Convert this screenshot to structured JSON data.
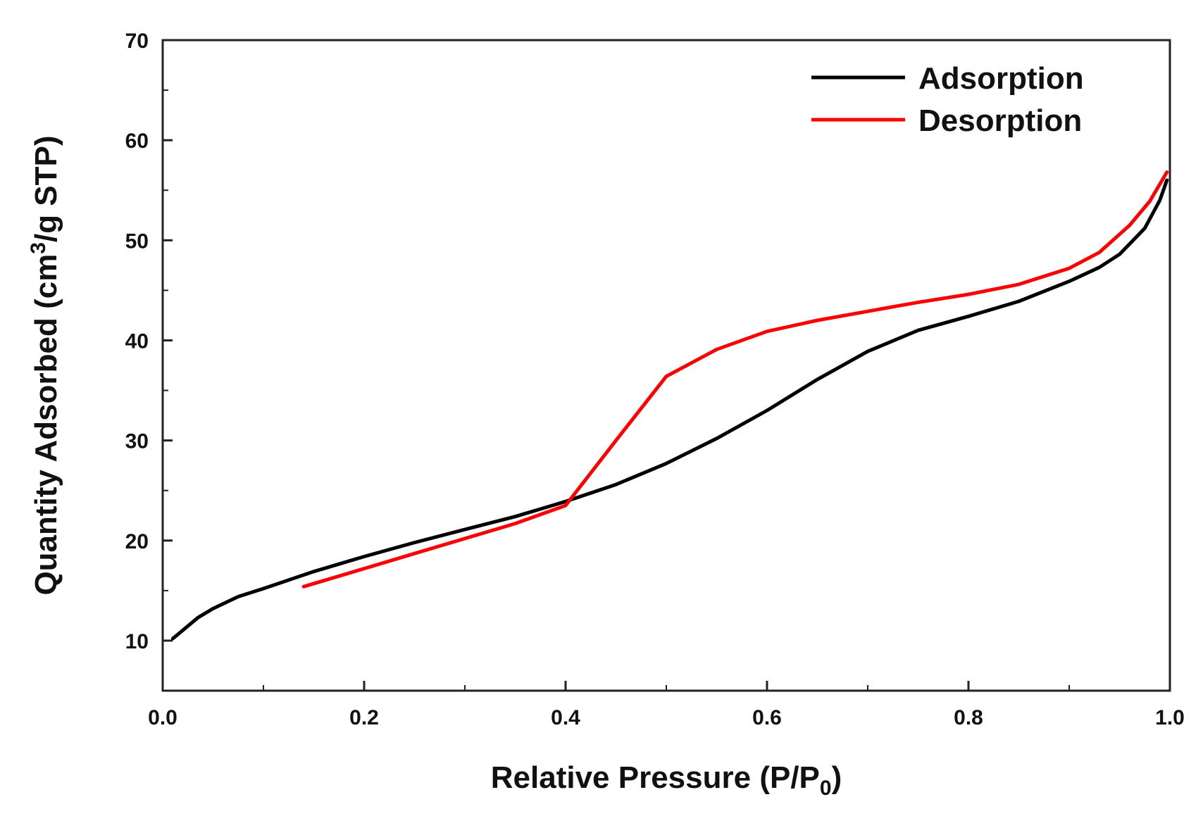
{
  "chart_data": {
    "type": "line",
    "title": "",
    "xlabel": "Relative Pressure (P/P",
    "xlabel_sub": "0",
    "xlabel_end": ")",
    "ylabel": "Quantity Adsorbed (cm",
    "ylabel_sup": "3",
    "ylabel_end": "/g STP)",
    "xlim": [
      0.0,
      1.0
    ],
    "ylim": [
      5,
      70
    ],
    "xticks": [
      "0.0",
      "0.2",
      "0.4",
      "0.6",
      "0.8",
      "1.0"
    ],
    "xtick_values": [
      0.0,
      0.2,
      0.4,
      0.6,
      0.8,
      1.0
    ],
    "yticks": [
      "10",
      "20",
      "30",
      "40",
      "50",
      "60",
      "70"
    ],
    "ytick_values": [
      10,
      20,
      30,
      40,
      50,
      60,
      70
    ],
    "legend_position": "top-right",
    "series": [
      {
        "name": "Adsorption",
        "color": "#000000",
        "x": [
          0.01,
          0.035,
          0.05,
          0.075,
          0.1,
          0.15,
          0.2,
          0.25,
          0.3,
          0.35,
          0.4,
          0.45,
          0.5,
          0.55,
          0.6,
          0.65,
          0.7,
          0.75,
          0.8,
          0.85,
          0.9,
          0.93,
          0.95,
          0.975,
          0.99,
          0.997
        ],
        "y": [
          10.2,
          12.3,
          13.2,
          14.4,
          15.2,
          16.9,
          18.4,
          19.8,
          21.1,
          22.4,
          23.9,
          25.6,
          27.7,
          30.2,
          33.0,
          36.1,
          38.9,
          41.0,
          42.4,
          43.9,
          45.9,
          47.3,
          48.6,
          51.2,
          54.0,
          56.0
        ]
      },
      {
        "name": "Desorption",
        "color": "#ff0000",
        "x": [
          0.14,
          0.2,
          0.25,
          0.3,
          0.35,
          0.4,
          0.45,
          0.5,
          0.55,
          0.6,
          0.65,
          0.7,
          0.75,
          0.8,
          0.85,
          0.9,
          0.93,
          0.96,
          0.98,
          0.997
        ],
        "y": [
          15.4,
          17.2,
          18.7,
          20.2,
          21.7,
          23.5,
          30.0,
          36.4,
          39.1,
          40.9,
          42.0,
          42.9,
          43.8,
          44.6,
          45.6,
          47.2,
          48.8,
          51.5,
          53.9,
          56.8
        ]
      }
    ]
  }
}
